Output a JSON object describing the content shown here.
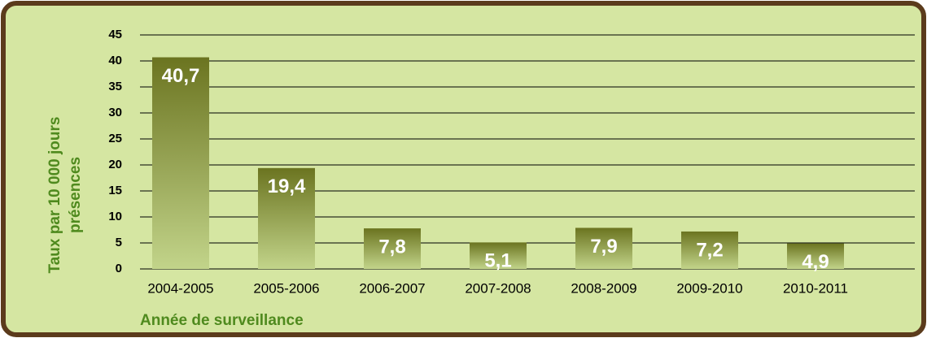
{
  "chart_data": {
    "type": "bar",
    "ylabel": [
      "Taux par 10 000 jours",
      "présences"
    ],
    "xlabel": "Année de surveillance",
    "categories": [
      "2004-2005",
      "2005-2006",
      "2006-2007",
      "2007-2008",
      "2008-2009",
      "2009-2010",
      "2010-2011"
    ],
    "values": [
      40.7,
      19.4,
      7.8,
      5.1,
      7.9,
      7.2,
      4.9
    ],
    "value_labels": [
      "40,7",
      "19,4",
      "7,8",
      "5,1",
      "7,9",
      "7,2",
      "4,9"
    ],
    "color": "#6b7420",
    "ylim": [
      0,
      45
    ],
    "yticks": [
      0,
      5,
      10,
      15,
      20,
      25,
      30,
      35,
      40,
      45
    ],
    "grid": true
  }
}
